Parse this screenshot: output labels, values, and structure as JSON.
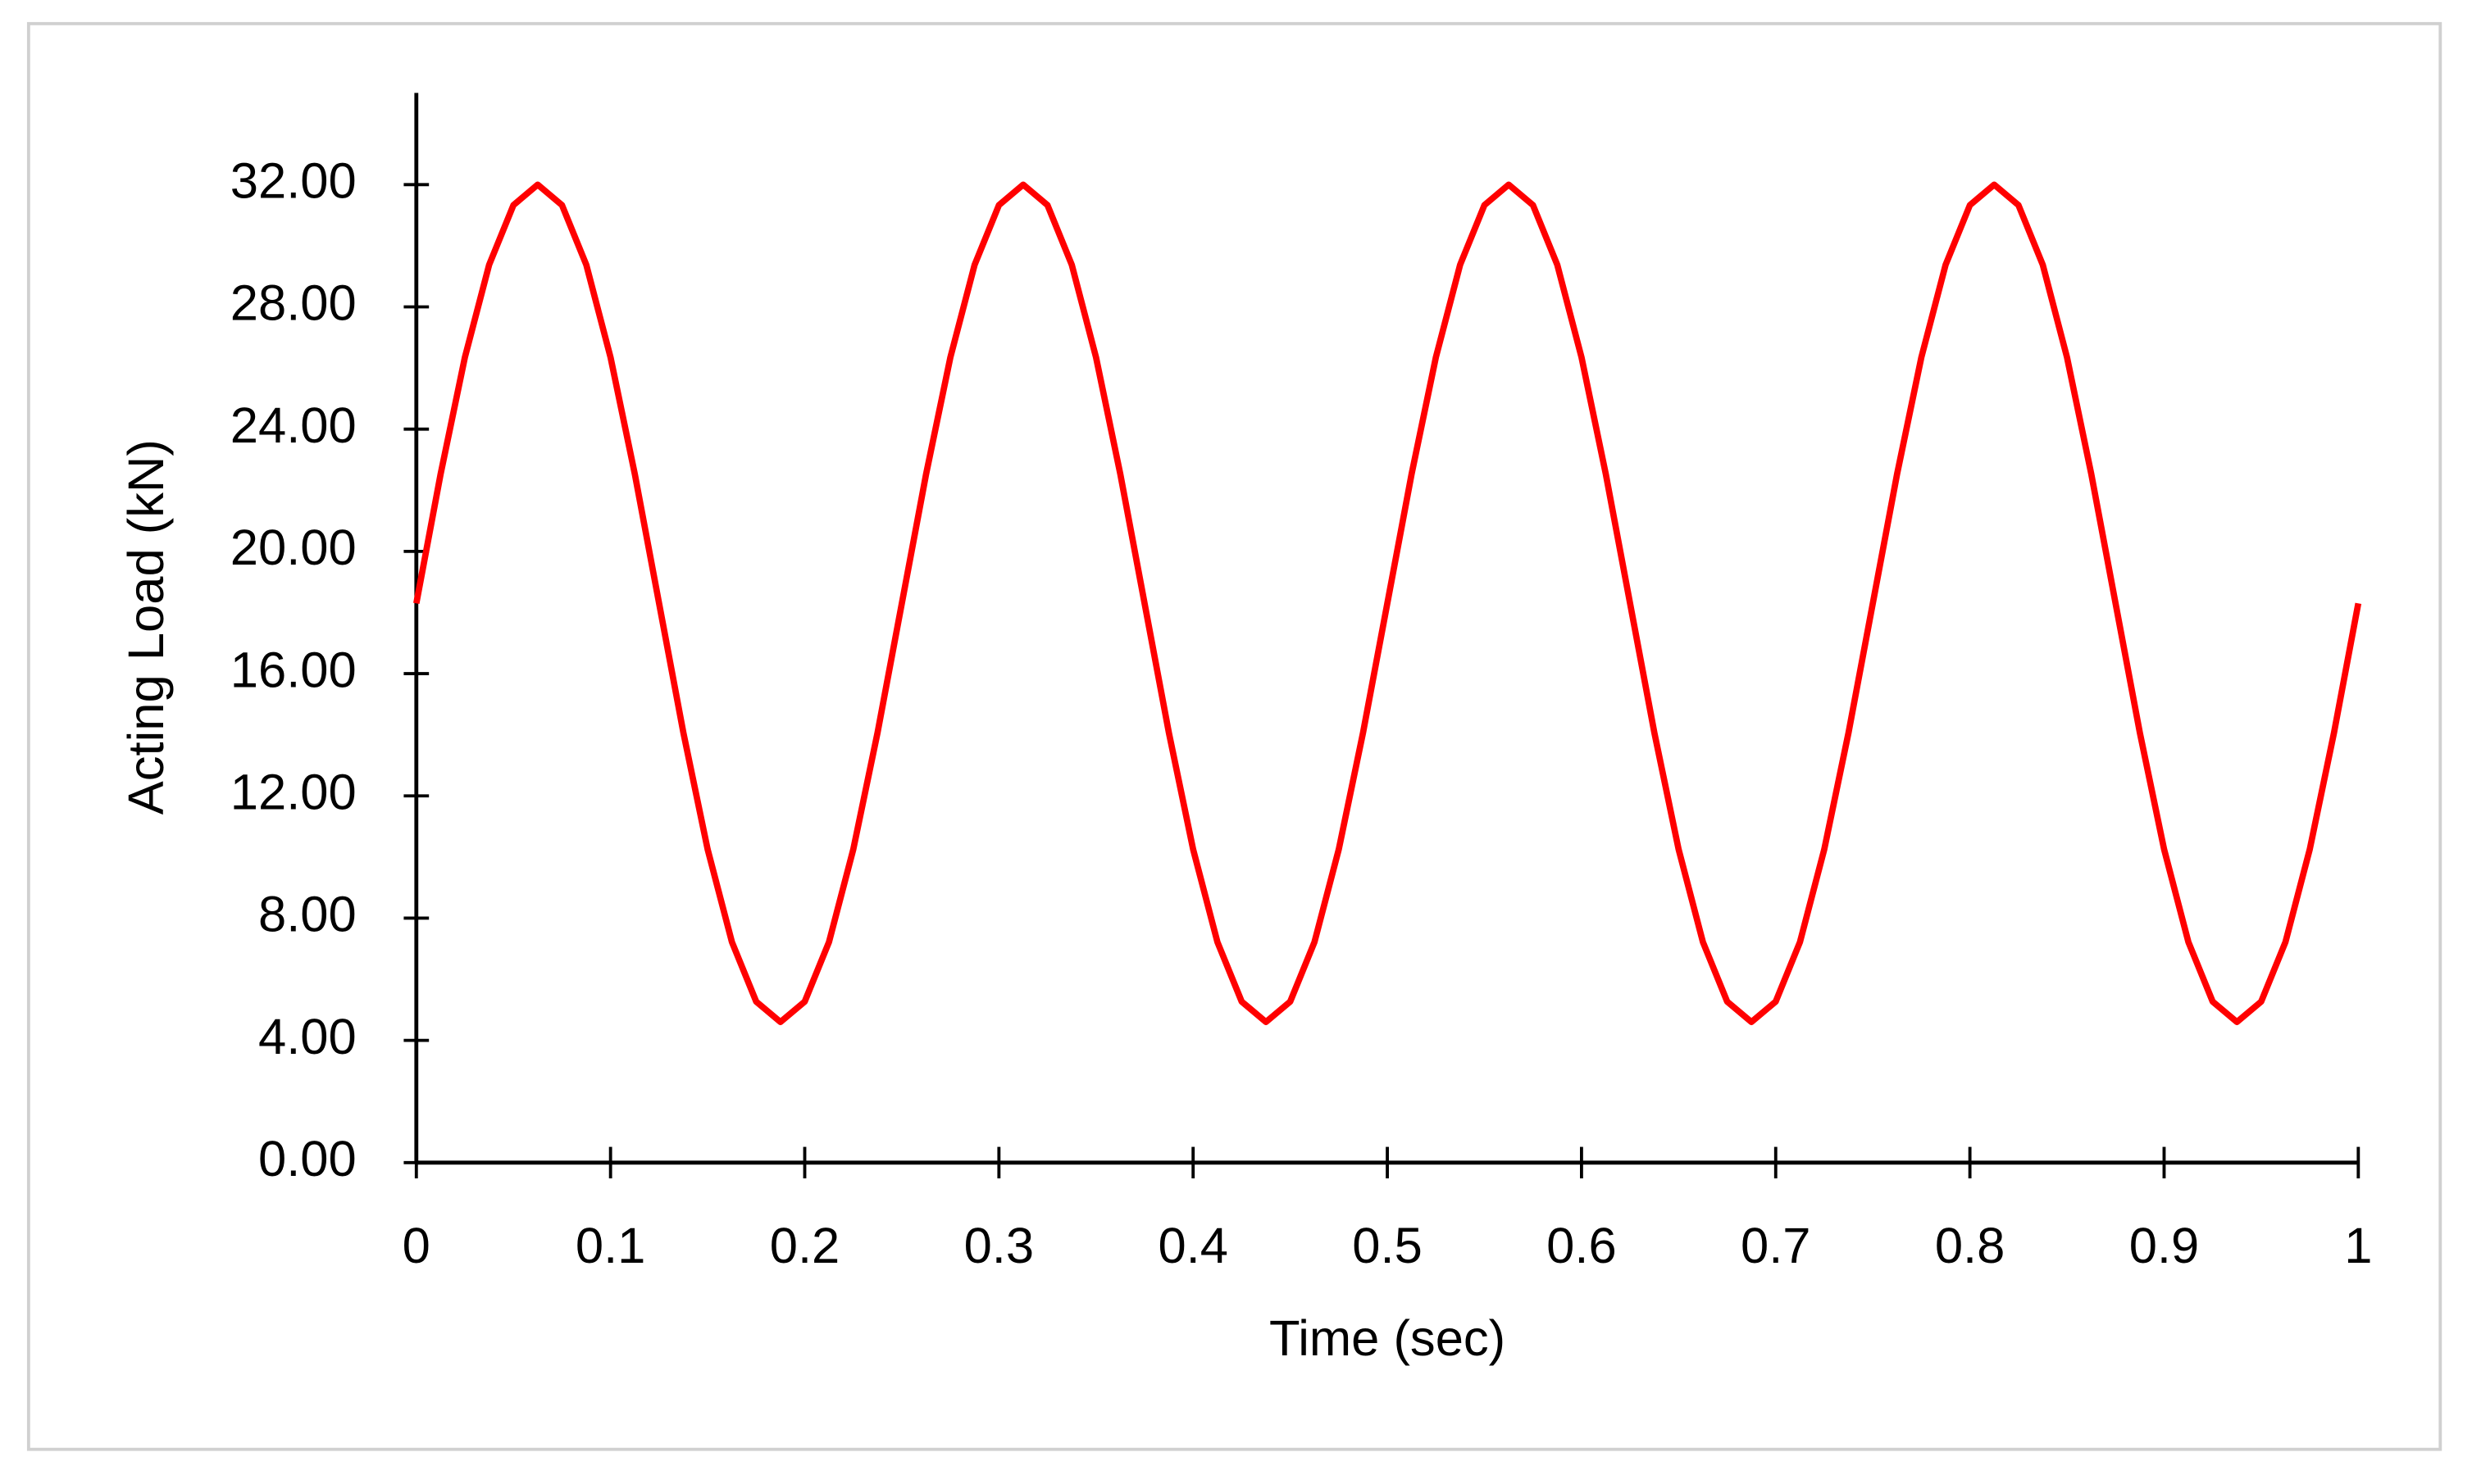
{
  "chart_data": {
    "type": "line",
    "x_label": "Time (sec)",
    "y_label": "Acting Load (kN)",
    "xlim": [
      0,
      1
    ],
    "ylim": [
      0,
      35
    ],
    "xticks": [
      0,
      0.1,
      0.2,
      0.3,
      0.4,
      0.5,
      0.6,
      0.7,
      0.8,
      0.9,
      1
    ],
    "yticks": [
      {
        "value": 0,
        "label": "0.00"
      },
      {
        "value": 4,
        "label": "4.00"
      },
      {
        "value": 8,
        "label": "8.00"
      },
      {
        "value": 12,
        "label": "12.00"
      },
      {
        "value": 16,
        "label": "16.00"
      },
      {
        "value": 20,
        "label": "20.00"
      },
      {
        "value": 24,
        "label": "24.00"
      },
      {
        "value": 28,
        "label": "28.00"
      },
      {
        "value": 32,
        "label": "32.00"
      }
    ],
    "x": [
      0,
      0.0125,
      0.025,
      0.0375,
      0.05,
      0.0625,
      0.075,
      0.0875,
      0.1,
      0.1125,
      0.125,
      0.1375,
      0.15,
      0.1625,
      0.175,
      0.1875,
      0.2,
      0.2125,
      0.225,
      0.2375,
      0.25,
      0.2625,
      0.275,
      0.2875,
      0.3,
      0.3125,
      0.325,
      0.3375,
      0.35,
      0.3625,
      0.375,
      0.3875,
      0.4,
      0.4125,
      0.425,
      0.4375,
      0.45,
      0.4625,
      0.475,
      0.4875,
      0.5,
      0.5125,
      0.525,
      0.5375,
      0.55,
      0.5625,
      0.575,
      0.5875,
      0.6,
      0.6125,
      0.625,
      0.6375,
      0.65,
      0.6625,
      0.675,
      0.6875,
      0.7,
      0.7125,
      0.725,
      0.7375,
      0.75,
      0.7625,
      0.775,
      0.7875,
      0.8,
      0.8125,
      0.825,
      0.8375,
      0.85,
      0.8625,
      0.875,
      0.8875,
      0.9,
      0.9125,
      0.925,
      0.9375,
      0.95,
      0.9625,
      0.975,
      0.9875,
      1
    ],
    "series": [
      {
        "color": "#ff0000",
        "values": [
          18.3,
          22.53,
          26.35,
          29.38,
          31.33,
          32.0,
          31.33,
          29.38,
          26.35,
          22.53,
          18.3,
          14.07,
          10.25,
          7.22,
          5.27,
          4.6,
          5.27,
          7.22,
          10.25,
          14.07,
          18.3,
          22.53,
          26.35,
          29.38,
          31.33,
          32.0,
          31.33,
          29.38,
          26.35,
          22.53,
          18.3,
          14.07,
          10.25,
          7.22,
          5.27,
          4.6,
          5.27,
          7.22,
          10.25,
          14.07,
          18.3,
          22.53,
          26.35,
          29.38,
          31.33,
          32.0,
          31.33,
          29.38,
          26.35,
          22.53,
          18.3,
          14.07,
          10.25,
          7.22,
          5.27,
          4.6,
          5.27,
          7.22,
          10.25,
          14.07,
          18.3,
          22.53,
          26.35,
          29.38,
          31.33,
          32.0,
          31.33,
          29.38,
          26.35,
          22.53,
          18.3,
          14.07,
          10.25,
          7.22,
          5.27,
          4.6,
          5.27,
          7.22,
          10.25,
          14.07,
          18.3
        ]
      }
    ]
  }
}
